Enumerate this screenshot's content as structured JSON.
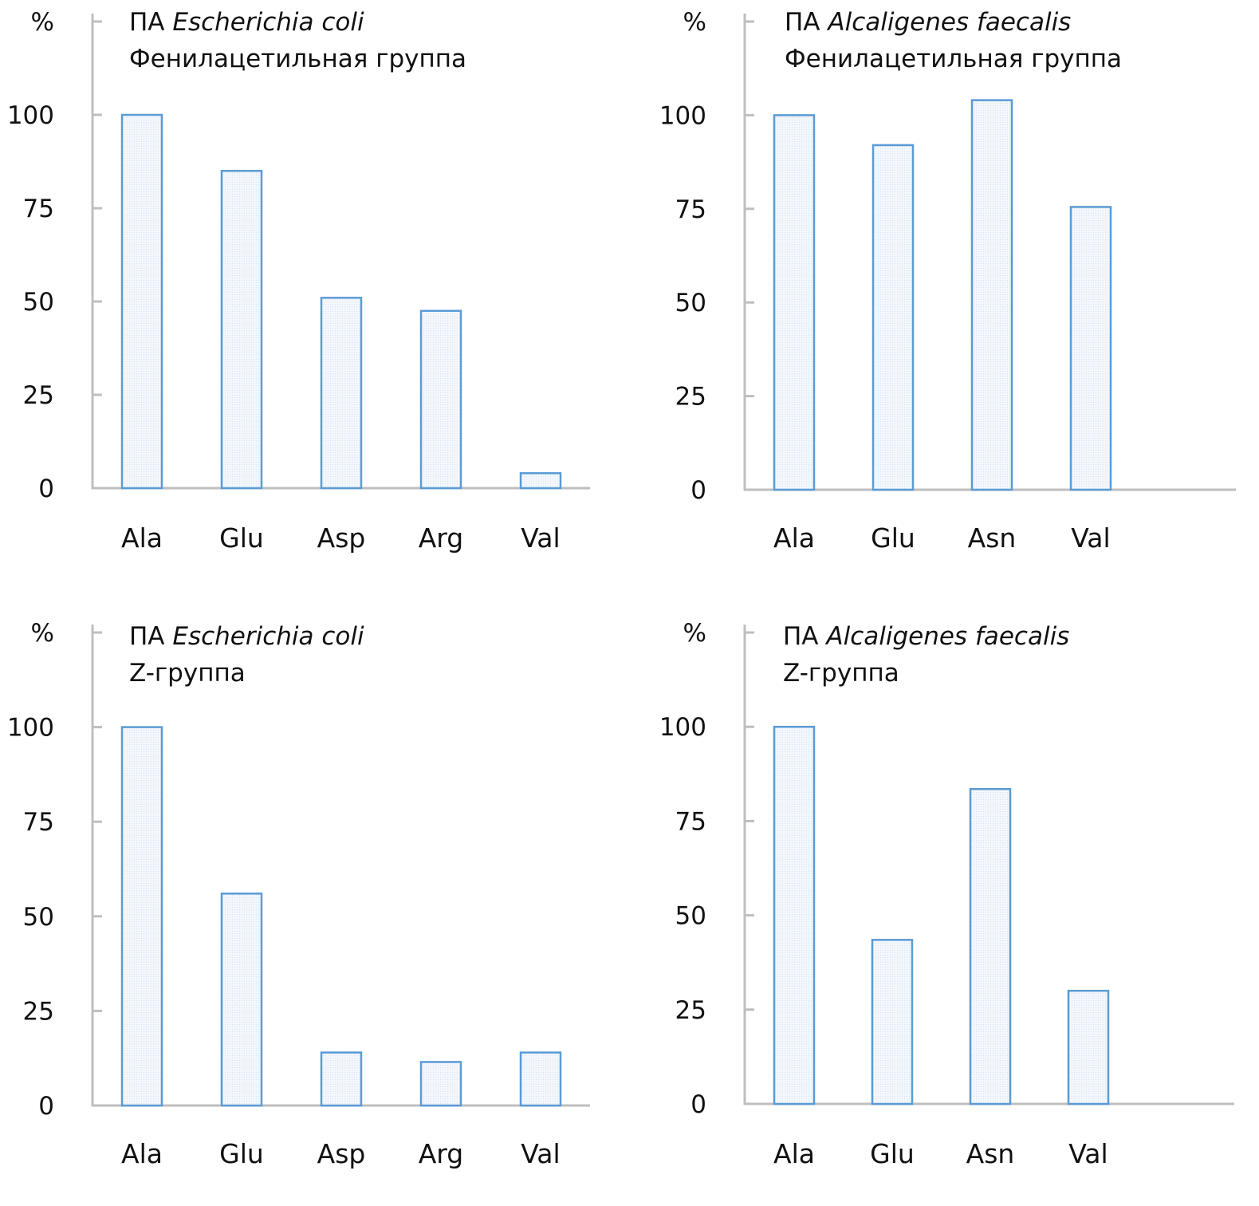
{
  "figure": {
    "colors": {
      "bar_stroke": "#5b9bd5",
      "bar_fill": "#eef4fb",
      "axis": "#bfbfbf",
      "text": "#111111"
    }
  },
  "chart_data": [
    {
      "type": "bar",
      "title": {
        "prefix": "ПА",
        "organism": "Escherichia coli",
        "subtitle": "Фенилацетильная группа"
      },
      "ylabel": "%",
      "xlabel": "",
      "ylim": [
        0,
        125
      ],
      "yticks": [
        0,
        25,
        50,
        75,
        100,
        125
      ],
      "ytick_labels": [
        "0",
        "25",
        "50",
        "75",
        "100",
        "%"
      ],
      "categories": [
        "Ala",
        "Glu",
        "Asp",
        "Arg",
        "Val"
      ],
      "slots": 5,
      "values": [
        100,
        85,
        51,
        47.5,
        4
      ],
      "grid": false,
      "legend": null
    },
    {
      "type": "bar",
      "title": {
        "prefix": "ПА",
        "organism": "Alcaligenes faecalis",
        "subtitle": "Фенилацетильная группа"
      },
      "ylabel": "%",
      "xlabel": "",
      "ylim": [
        0,
        125
      ],
      "yticks": [
        0,
        25,
        50,
        75,
        100,
        125
      ],
      "ytick_labels": [
        "0",
        "25",
        "50",
        "75",
        "100",
        "%"
      ],
      "categories": [
        "Ala",
        "Glu",
        "Asn",
        "Val"
      ],
      "slots": 5,
      "values": [
        100,
        92,
        104,
        75.5
      ],
      "grid": false,
      "legend": null
    },
    {
      "type": "bar",
      "title": {
        "prefix": "ПА",
        "organism": "Escherichia coli",
        "subtitle": "Z-группа"
      },
      "ylabel": "%",
      "xlabel": "",
      "ylim": [
        0,
        125
      ],
      "yticks": [
        0,
        25,
        50,
        75,
        100,
        125
      ],
      "ytick_labels": [
        "0",
        "25",
        "50",
        "75",
        "100",
        "%"
      ],
      "categories": [
        "Ala",
        "Glu",
        "Asp",
        "Arg",
        "Val"
      ],
      "slots": 5,
      "values": [
        100,
        56,
        14,
        11.5,
        14
      ],
      "grid": false,
      "legend": null
    },
    {
      "type": "bar",
      "title": {
        "prefix": "ПА",
        "organism": "Alcaligenes faecalis",
        "subtitle": "Z-группа"
      },
      "ylabel": "%",
      "xlabel": "",
      "ylim": [
        0,
        125
      ],
      "yticks": [
        0,
        25,
        50,
        75,
        100,
        125
      ],
      "ytick_labels": [
        "0",
        "25",
        "50",
        "75",
        "100",
        "%"
      ],
      "categories": [
        "Ala",
        "Glu",
        "Asn",
        "Val"
      ],
      "slots": 5,
      "values": [
        100,
        43.5,
        83.5,
        30
      ],
      "grid": false,
      "legend": null
    }
  ]
}
